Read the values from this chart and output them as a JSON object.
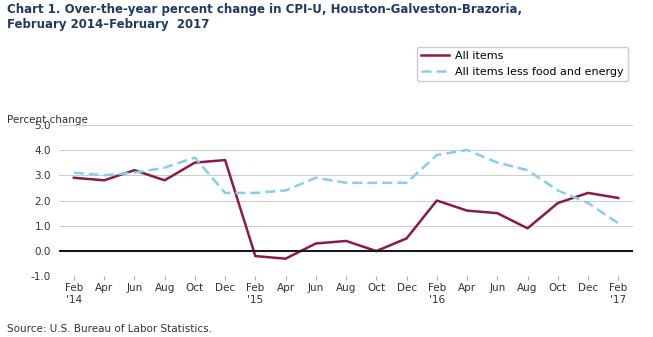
{
  "title_line1": "Chart 1. Over-the-year percent change in CPI-U, Houston-Galveston-Brazoria,",
  "title_line2": "February 2014–February  2017",
  "ylabel": "Percent change",
  "source": "Source: U.S. Bureau of Labor Statistics.",
  "ylim": [
    -1.0,
    5.0
  ],
  "yticks": [
    -1.0,
    0.0,
    1.0,
    2.0,
    3.0,
    4.0,
    5.0
  ],
  "x_labels": [
    "Feb\n'14",
    "Apr",
    "Jun",
    "Aug",
    "Oct",
    "Dec",
    "Feb\n'15",
    "Apr",
    "Jun",
    "Aug",
    "Oct",
    "Dec",
    "Feb\n'16",
    "Apr",
    "Jun",
    "Aug",
    "Oct",
    "Dec",
    "Feb\n'17"
  ],
  "all_items": [
    2.9,
    2.8,
    3.2,
    2.8,
    3.5,
    3.6,
    -0.2,
    -0.3,
    0.3,
    0.4,
    0.0,
    0.5,
    2.0,
    1.6,
    1.5,
    0.9,
    1.9,
    2.3,
    2.1
  ],
  "all_items_less": [
    3.1,
    3.0,
    3.1,
    3.3,
    3.7,
    2.3,
    2.3,
    2.4,
    2.9,
    2.7,
    2.7,
    2.7,
    3.8,
    4.0,
    3.5,
    3.2,
    2.4,
    1.9,
    1.1
  ],
  "all_items_color": "#8B1A4A",
  "all_items_less_color": "#87CEEB",
  "background_color": "#ffffff",
  "grid_color": "#cccccc",
  "zero_line_color": "#1a1a1a",
  "legend_labels": [
    "All items",
    "All items less food and energy"
  ],
  "title_color": "#1F3864",
  "axis_label_color": "#333333",
  "source_color": "#333333",
  "title_fontsize": 8.5,
  "ylabel_fontsize": 7.5,
  "tick_fontsize": 7.5,
  "legend_fontsize": 8.0,
  "source_fontsize": 7.5
}
